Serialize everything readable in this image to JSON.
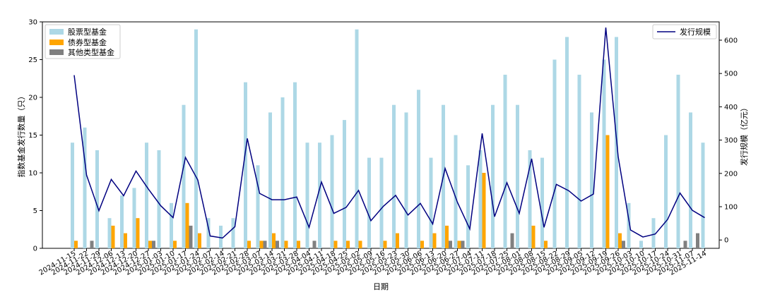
{
  "chart_data": {
    "type": "bar",
    "xlabel": "日期",
    "ylabel": "指数基金发行数量（只）",
    "y2label": "发行规模（亿元）",
    "ylim": [
      0,
      30
    ],
    "y2lim": [
      -25,
      655
    ],
    "yticks": [
      0,
      5,
      10,
      15,
      20,
      25,
      30
    ],
    "y2ticks": [
      0,
      100,
      200,
      300,
      400,
      500,
      600
    ],
    "grid": false,
    "legend_left": "top-left",
    "legend_right": "top-right",
    "categories": [
      "2024-11-15",
      "2024-11-22",
      "2024-11-29",
      "2024-12-06",
      "2024-12-13",
      "2024-12-20",
      "2024-12-27",
      "2025-01-03",
      "2025-01-10",
      "2025-01-17",
      "2025-01-24",
      "2025-02-07",
      "2025-02-14",
      "2025-02-21",
      "2025-02-28",
      "2025-03-07",
      "2025-03-14",
      "2025-03-21",
      "2025-03-28",
      "2025-04-04",
      "2025-04-11",
      "2025-04-18",
      "2025-04-25",
      "2025-05-02",
      "2025-05-09",
      "2025-05-16",
      "2025-05-23",
      "2025-05-30",
      "2025-06-06",
      "2025-06-13",
      "2025-06-20",
      "2025-06-27",
      "2025-07-04",
      "2025-07-11",
      "2025-07-18",
      "2025-07-25",
      "2025-08-01",
      "2025-08-08",
      "2025-08-15",
      "2025-08-22",
      "2025-08-29",
      "2025-09-05",
      "2025-09-12",
      "2025-09-19",
      "2025-09-26",
      "2025-10-03",
      "2025-10-10",
      "2025-10-17",
      "2025-10-24",
      "2025-10-31",
      "2025-11-07",
      "2025-11-14"
    ],
    "series": [
      {
        "name": "股票型基金",
        "color": "#add8e6",
        "axis": "left",
        "values": [
          14,
          16,
          13,
          4,
          7,
          8,
          14,
          13,
          6,
          19,
          29,
          4,
          3,
          4,
          22,
          11,
          18,
          20,
          22,
          14,
          14,
          15,
          17,
          29,
          12,
          12,
          19,
          18,
          21,
          12,
          19,
          15,
          11,
          13,
          19,
          23,
          19,
          13,
          12,
          25,
          28,
          23,
          18,
          25,
          28,
          6,
          1,
          4,
          15,
          23,
          18,
          14
        ]
      },
      {
        "name": "债券型基金",
        "color": "#ffa500",
        "axis": "left",
        "values": [
          1,
          0,
          0,
          3,
          2,
          4,
          1,
          0,
          1,
          6,
          2,
          0,
          0,
          0,
          1,
          1,
          2,
          1,
          1,
          0,
          0,
          1,
          1,
          1,
          0,
          1,
          2,
          0,
          1,
          2,
          3,
          1,
          0,
          10,
          0,
          0,
          0,
          3,
          1,
          0,
          0,
          0,
          0,
          15,
          2,
          0,
          0,
          0,
          0,
          0,
          0,
          0
        ]
      },
      {
        "name": "其他类型基金",
        "color": "#808080",
        "axis": "left",
        "values": [
          0,
          1,
          0,
          0,
          0,
          0,
          1,
          0,
          0,
          3,
          0,
          0,
          0,
          0,
          0,
          1,
          1,
          0,
          0,
          1,
          0,
          0,
          0,
          0,
          0,
          0,
          0,
          0,
          0,
          0,
          1,
          1,
          0,
          0,
          0,
          2,
          0,
          0,
          0,
          0,
          0,
          0,
          0,
          0,
          1,
          0,
          0,
          0,
          0,
          1,
          2,
          0
        ]
      },
      {
        "name": "发行规模",
        "color": "#000080",
        "axis": "right",
        "type": "line",
        "values": [
          495,
          195,
          88,
          182,
          133,
          207,
          153,
          103,
          67,
          248,
          180,
          12,
          6,
          40,
          305,
          140,
          121,
          121,
          129,
          38,
          174,
          80,
          98,
          149,
          58,
          101,
          134,
          75,
          110,
          48,
          215,
          113,
          33,
          320,
          70,
          172,
          80,
          244,
          38,
          167,
          148,
          117,
          138,
          638,
          250,
          30,
          9,
          18,
          62,
          141,
          89,
          67
        ]
      }
    ]
  }
}
